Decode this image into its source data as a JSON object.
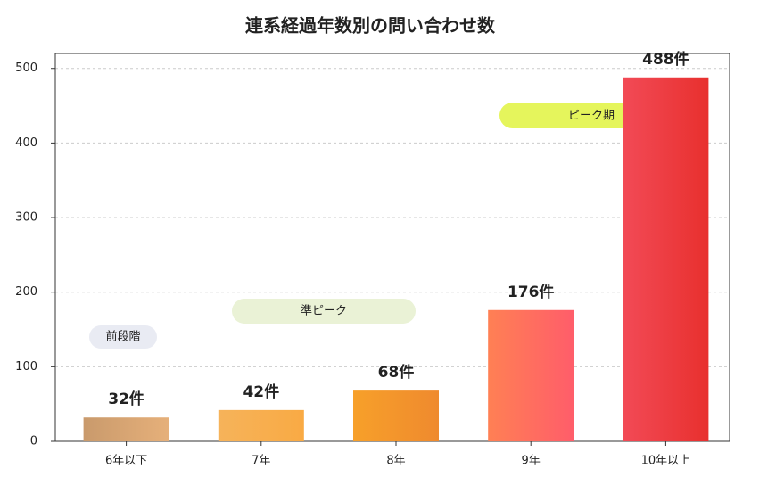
{
  "chart_data": {
    "type": "bar",
    "title": "連系経過年数別の問い合わせ数",
    "categories": [
      "6年以下",
      "7年",
      "8年",
      "9年",
      "10年以上"
    ],
    "values": [
      32,
      42,
      68,
      176,
      488
    ],
    "value_labels": [
      "32件",
      "42件",
      "68件",
      "176件",
      "488件"
    ],
    "colors": [
      "#d8a46c",
      "#f7b04e",
      "#f3952a",
      "#ff6a62",
      "#ee3a42"
    ],
    "ylim": [
      0,
      520
    ],
    "yticks": [
      0,
      100,
      200,
      300,
      400,
      500
    ],
    "grid": true,
    "annotations": [
      "前段階",
      "準ピーク",
      "ピーク期"
    ]
  }
}
